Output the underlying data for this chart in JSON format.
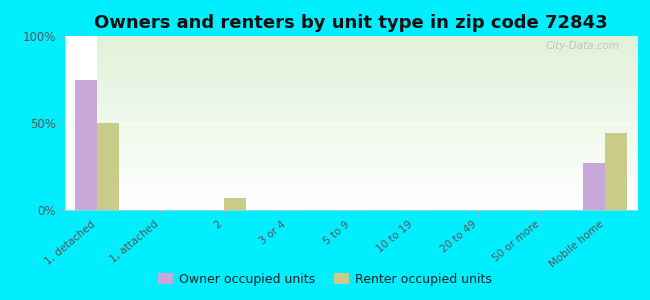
{
  "title": "Owners and renters by unit type in zip code 72843",
  "categories": [
    "1, detached",
    "1, attached",
    "2",
    "3 or 4",
    "5 to 9",
    "10 to 19",
    "20 to 49",
    "50 or more",
    "Mobile home"
  ],
  "owner_values": [
    75,
    0,
    0,
    0,
    0,
    0,
    0,
    0,
    27
  ],
  "renter_values": [
    50,
    0,
    7,
    0,
    0,
    0,
    0,
    0,
    44
  ],
  "owner_color": "#c8a8d8",
  "renter_color": "#c8cc88",
  "bg_outer": "#00eeff",
  "ylim": [
    0,
    100
  ],
  "yticks": [
    0,
    50,
    100
  ],
  "ytick_labels": [
    "0%",
    "50%",
    "100%"
  ],
  "legend_owner": "Owner occupied units",
  "legend_renter": "Renter occupied units",
  "bar_width": 0.35,
  "title_fontsize": 13,
  "watermark": "City-Data.com"
}
